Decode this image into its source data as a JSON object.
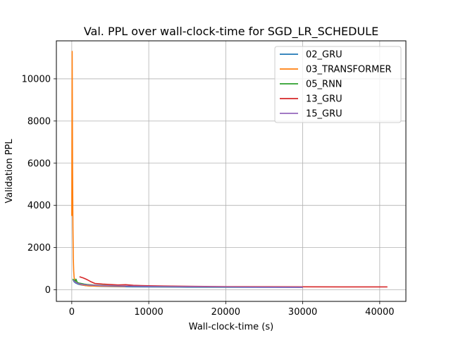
{
  "chart_data": {
    "type": "line",
    "title": "Val. PPL over wall-clock-time for SGD_LR_SCHEDULE",
    "xlabel": "Wall-clock-time (s)",
    "ylabel": "Validation PPL",
    "xlim": [
      -2000,
      43400
    ],
    "ylim": [
      -550,
      11800
    ],
    "xticks": [
      0,
      10000,
      20000,
      30000,
      40000
    ],
    "yticks": [
      0,
      2000,
      4000,
      6000,
      8000,
      10000
    ],
    "grid": true,
    "legend_position": "top-right",
    "series": [
      {
        "name": "02_GRU",
        "color": "#1f77b4",
        "x": [
          150,
          300,
          500,
          800,
          1200,
          1800,
          2500,
          4000,
          6000,
          8000,
          10000,
          15000,
          20000,
          25000,
          30000
        ],
        "y": [
          480,
          380,
          320,
          270,
          230,
          200,
          180,
          160,
          150,
          140,
          135,
          125,
          118,
          115,
          112
        ]
      },
      {
        "name": "03_TRANSFORMER",
        "color": "#ff7f0e",
        "x": [
          0,
          50,
          100,
          150,
          200,
          250,
          300,
          400,
          500,
          700,
          1000,
          1500,
          2000,
          2500,
          3000,
          4000,
          5000,
          6000,
          7000
        ],
        "y": [
          3500,
          11300,
          6000,
          3000,
          1500,
          900,
          600,
          450,
          380,
          320,
          270,
          220,
          190,
          180,
          175,
          170,
          165,
          162,
          160
        ]
      },
      {
        "name": "05_RNN",
        "color": "#2ca02c",
        "x": [
          150,
          250,
          350,
          450,
          550,
          700,
          900,
          1200,
          1600,
          2000,
          3000,
          5000,
          8000,
          12000,
          18000,
          22000
        ],
        "y": [
          520,
          420,
          460,
          380,
          500,
          360,
          320,
          300,
          270,
          250,
          220,
          190,
          170,
          150,
          135,
          130
        ]
      },
      {
        "name": "13_GRU",
        "color": "#d62728",
        "x": [
          1000,
          1500,
          2000,
          2500,
          3000,
          4000,
          5000,
          6000,
          7000,
          8000,
          9000,
          10000,
          12000,
          14000,
          16000,
          20000,
          25000,
          30000,
          35000,
          41000
        ],
        "y": [
          620,
          560,
          480,
          380,
          300,
          270,
          250,
          230,
          240,
          210,
          200,
          190,
          180,
          170,
          160,
          150,
          145,
          140,
          138,
          135
        ]
      },
      {
        "name": "15_GRU",
        "color": "#9467bd",
        "x": [
          200,
          400,
          700,
          1000,
          1500,
          2000,
          3000,
          4000,
          6000,
          8000,
          10000,
          14000,
          18000,
          22000,
          26000,
          30000
        ],
        "y": [
          460,
          380,
          310,
          280,
          250,
          230,
          210,
          195,
          180,
          170,
          160,
          150,
          140,
          130,
          125,
          120
        ]
      }
    ]
  }
}
